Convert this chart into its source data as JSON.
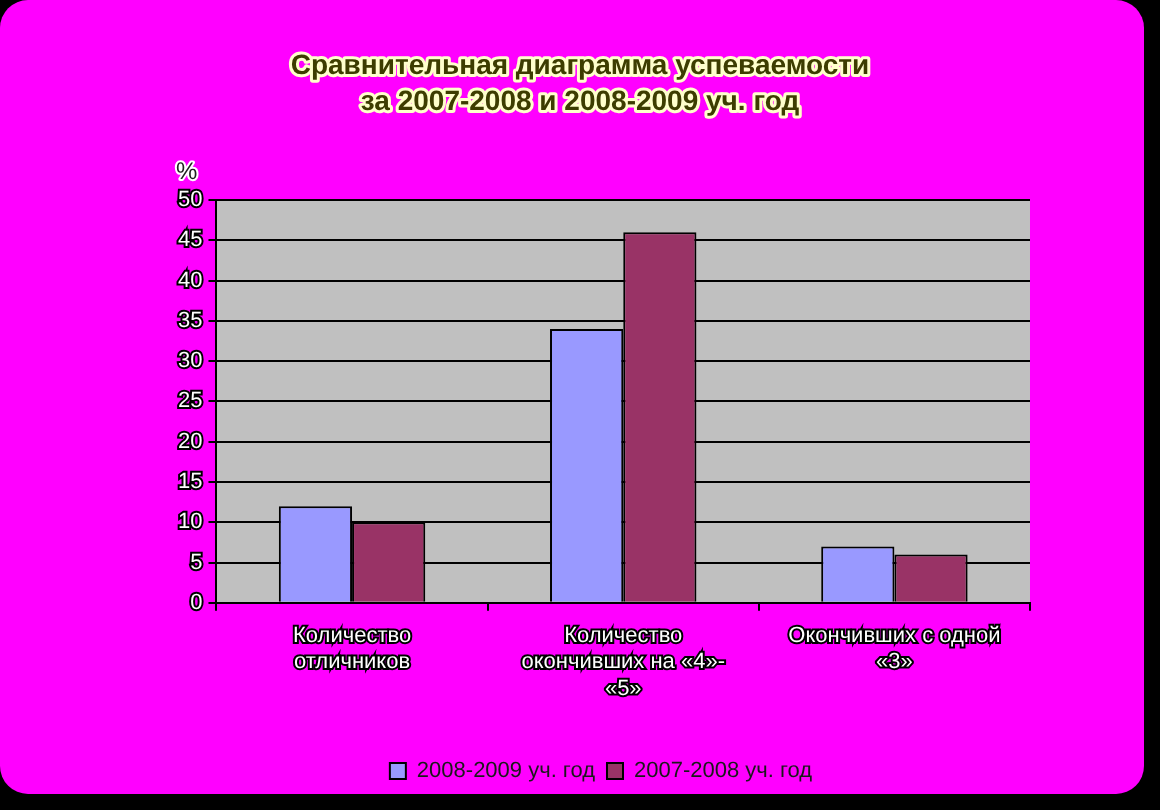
{
  "chart_data": {
    "type": "bar",
    "title": "Сравнительная диаграмма успеваемости\nза 2007-2008 и 2008-2009 уч. год",
    "ylabel": "%",
    "categories": [
      "Количество отличников",
      "Количество окончивших на «4»-«5»",
      "Окончивших с одной «3»"
    ],
    "series": [
      {
        "name": "2008-2009 уч. год",
        "color": "#9999ff",
        "values": [
          12,
          34,
          7
        ]
      },
      {
        "name": "2007-2008 уч. год",
        "color": "#993366",
        "values": [
          10,
          46,
          6
        ]
      }
    ],
    "ylim": [
      0,
      50
    ],
    "yticks": [
      0,
      5,
      10,
      15,
      20,
      25,
      30,
      35,
      40,
      45,
      50
    ],
    "grid": "y",
    "legend": "bottom"
  }
}
